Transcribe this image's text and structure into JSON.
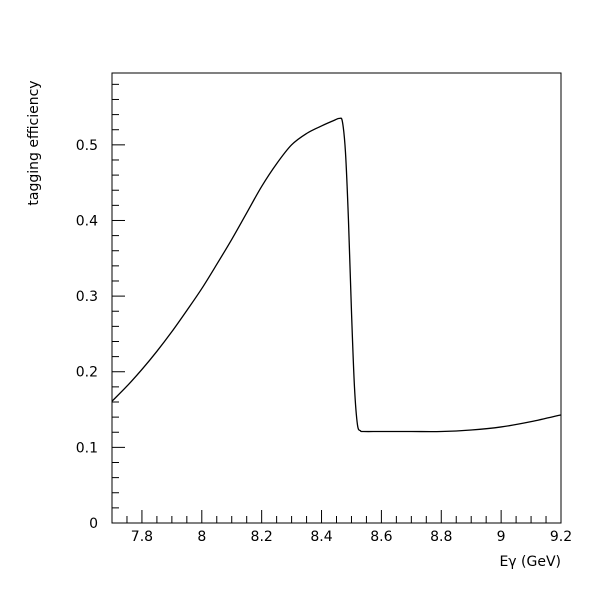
{
  "chart_data": {
    "type": "line",
    "title": "",
    "xlabel": "Eγ (GeV)",
    "ylabel": "tagging efficiency",
    "xlim": [
      7.7,
      9.2
    ],
    "ylim": [
      0,
      0.595
    ],
    "x_ticks": [
      7.8,
      8.0,
      8.2,
      8.4,
      8.6,
      8.8,
      9.0,
      9.2
    ],
    "x_tick_labels": [
      "7.8",
      "8",
      "8.2",
      "8.4",
      "8.6",
      "8.8",
      "9",
      "9.2"
    ],
    "y_ticks": [
      0,
      0.1,
      0.2,
      0.3,
      0.4,
      0.5
    ],
    "y_tick_labels": [
      "0",
      "0.1",
      "0.2",
      "0.3",
      "0.4",
      "0.5"
    ],
    "grid": false,
    "line_color": "#000000",
    "series": [
      {
        "x": [
          7.7,
          7.75,
          7.8,
          7.85,
          7.9,
          7.95,
          8.0,
          8.05,
          8.1,
          8.15,
          8.2,
          8.25,
          8.3,
          8.35,
          8.4,
          8.44,
          8.46,
          8.47,
          8.48,
          8.49,
          8.5,
          8.51,
          8.52,
          8.53,
          8.54,
          8.6,
          8.7,
          8.8,
          8.9,
          9.0,
          9.1,
          9.2
        ],
        "y": [
          0.161,
          0.181,
          0.203,
          0.227,
          0.253,
          0.281,
          0.31,
          0.342,
          0.375,
          0.41,
          0.445,
          0.475,
          0.5,
          0.515,
          0.525,
          0.532,
          0.535,
          0.53,
          0.49,
          0.4,
          0.28,
          0.18,
          0.13,
          0.122,
          0.121,
          0.121,
          0.121,
          0.121,
          0.123,
          0.127,
          0.134,
          0.143
        ]
      }
    ]
  }
}
